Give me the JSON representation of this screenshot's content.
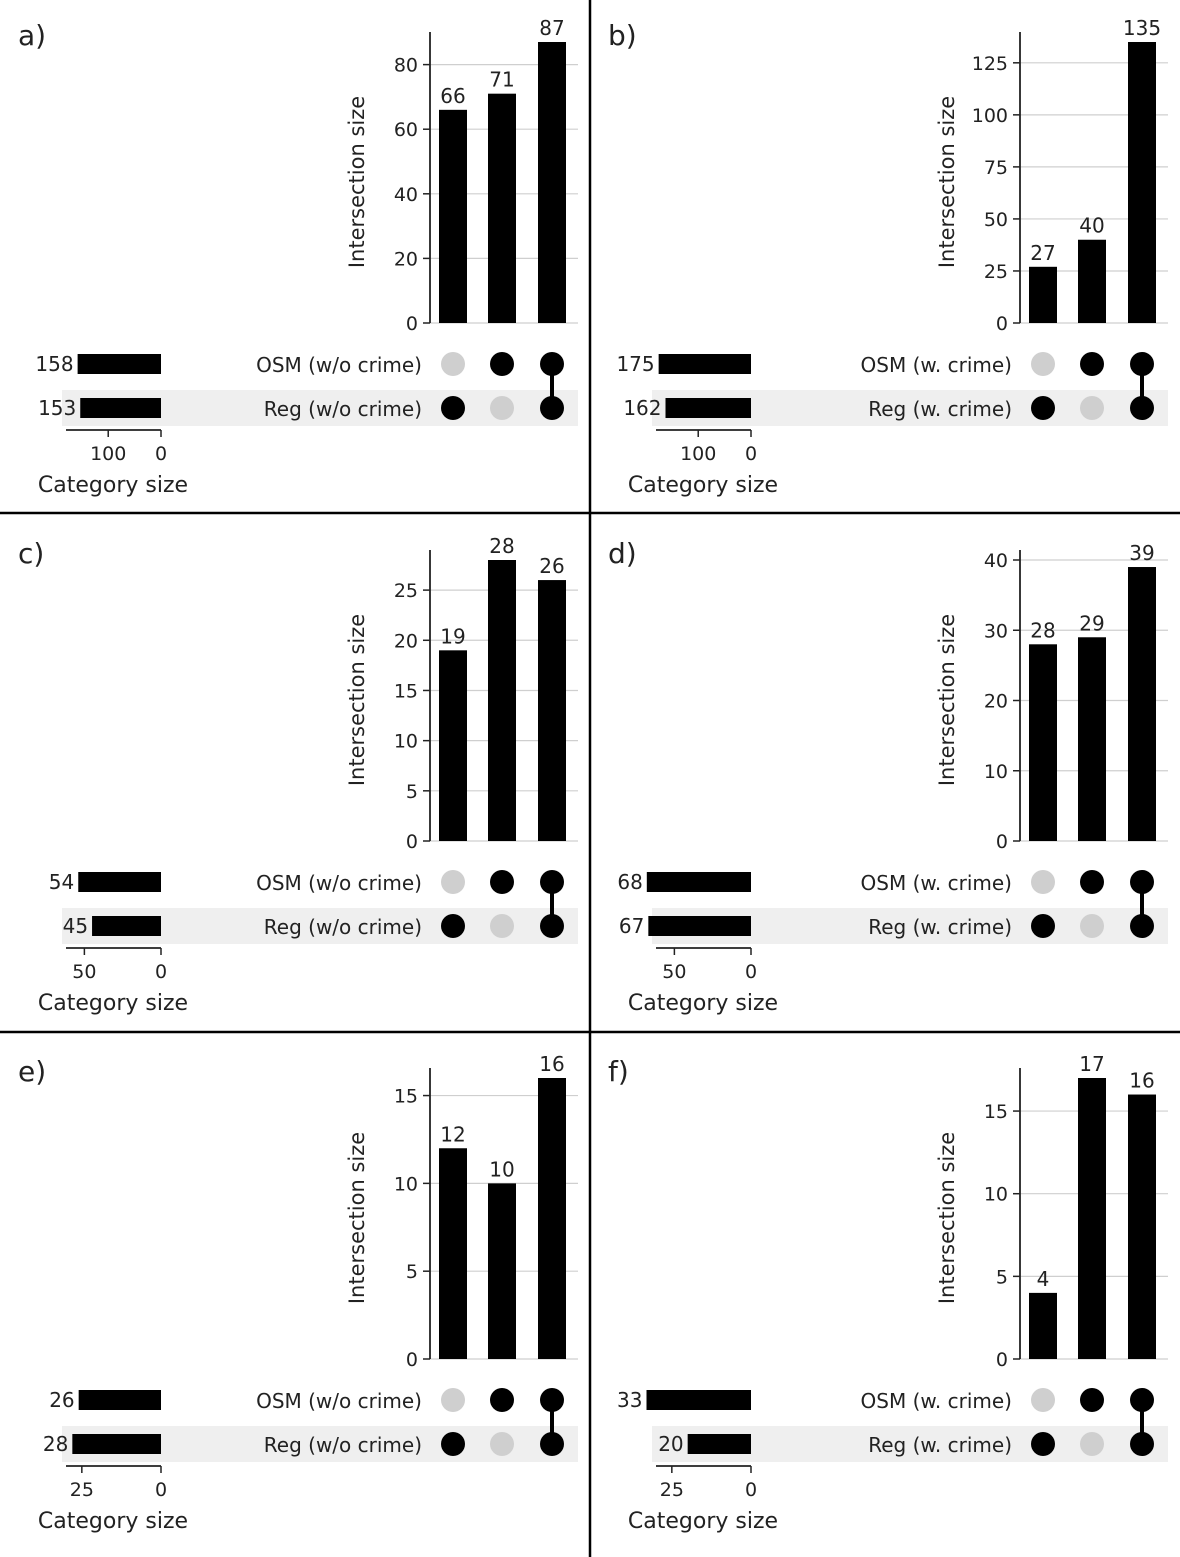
{
  "figure": {
    "chart_data": [
      {
        "type": "upset",
        "panel_label": "a)",
        "sets": [
          "OSM (w/o crime)",
          "Reg (w/o crime)"
        ],
        "set_sizes": [
          158,
          153
        ],
        "set_size_ticks": [
          100,
          0
        ],
        "set_size_xlabel": "Category size",
        "intersections": [
          {
            "members": [
              false,
              true
            ],
            "value": 66
          },
          {
            "members": [
              true,
              false
            ],
            "value": 71
          },
          {
            "members": [
              true,
              true
            ],
            "value": 87
          }
        ],
        "ylabel": "Intersection size",
        "yticks": [
          0,
          20,
          40,
          60,
          80
        ],
        "ymax": 87,
        "grid": true
      },
      {
        "type": "upset",
        "panel_label": "b)",
        "sets": [
          "OSM (w. crime)",
          "Reg (w. crime)"
        ],
        "set_sizes": [
          175,
          162
        ],
        "set_size_ticks": [
          100,
          0
        ],
        "set_size_xlabel": "Category size",
        "intersections": [
          {
            "members": [
              false,
              true
            ],
            "value": 27
          },
          {
            "members": [
              true,
              false
            ],
            "value": 40
          },
          {
            "members": [
              true,
              true
            ],
            "value": 135
          }
        ],
        "ylabel": "Intersection size",
        "yticks": [
          0,
          25,
          50,
          75,
          100,
          125
        ],
        "ymax": 135,
        "grid": true
      },
      {
        "type": "upset",
        "panel_label": "c)",
        "sets": [
          "OSM (w/o crime)",
          "Reg (w/o crime)"
        ],
        "set_sizes": [
          54,
          45
        ],
        "set_size_ticks": [
          50,
          0
        ],
        "set_size_xlabel": "Category size",
        "intersections": [
          {
            "members": [
              false,
              true
            ],
            "value": 19
          },
          {
            "members": [
              true,
              false
            ],
            "value": 28
          },
          {
            "members": [
              true,
              true
            ],
            "value": 26
          }
        ],
        "ylabel": "Intersection size",
        "yticks": [
          0,
          5,
          10,
          15,
          20,
          25
        ],
        "ymax": 28,
        "grid": true
      },
      {
        "type": "upset",
        "panel_label": "d)",
        "sets": [
          "OSM (w. crime)",
          "Reg (w. crime)"
        ],
        "set_sizes": [
          68,
          67
        ],
        "set_size_ticks": [
          50,
          0
        ],
        "set_size_xlabel": "Category size",
        "intersections": [
          {
            "members": [
              false,
              true
            ],
            "value": 28
          },
          {
            "members": [
              true,
              false
            ],
            "value": 29
          },
          {
            "members": [
              true,
              true
            ],
            "value": 39
          }
        ],
        "ylabel": "Intersection size",
        "yticks": [
          0,
          10,
          20,
          30,
          40
        ],
        "ymax": 40,
        "grid": true
      },
      {
        "type": "upset",
        "panel_label": "e)",
        "sets": [
          "OSM (w/o crime)",
          "Reg (w/o crime)"
        ],
        "set_sizes": [
          26,
          28
        ],
        "set_size_ticks": [
          25,
          0
        ],
        "set_size_xlabel": "Category size",
        "intersections": [
          {
            "members": [
              false,
              true
            ],
            "value": 12
          },
          {
            "members": [
              true,
              false
            ],
            "value": 10
          },
          {
            "members": [
              true,
              true
            ],
            "value": 16
          }
        ],
        "ylabel": "Intersection size",
        "yticks": [
          0,
          5,
          10,
          15
        ],
        "ymax": 16,
        "grid": true
      },
      {
        "type": "upset",
        "panel_label": "f)",
        "sets": [
          "OSM (w. crime)",
          "Reg (w. crime)"
        ],
        "set_sizes": [
          33,
          20
        ],
        "set_size_ticks": [
          25,
          0
        ],
        "set_size_xlabel": "Category size",
        "intersections": [
          {
            "members": [
              false,
              true
            ],
            "value": 4
          },
          {
            "members": [
              true,
              false
            ],
            "value": 17
          },
          {
            "members": [
              true,
              true
            ],
            "value": 16
          }
        ],
        "ylabel": "Intersection size",
        "yticks": [
          0,
          5,
          10,
          15
        ],
        "ymax": 17,
        "grid": true
      }
    ]
  }
}
